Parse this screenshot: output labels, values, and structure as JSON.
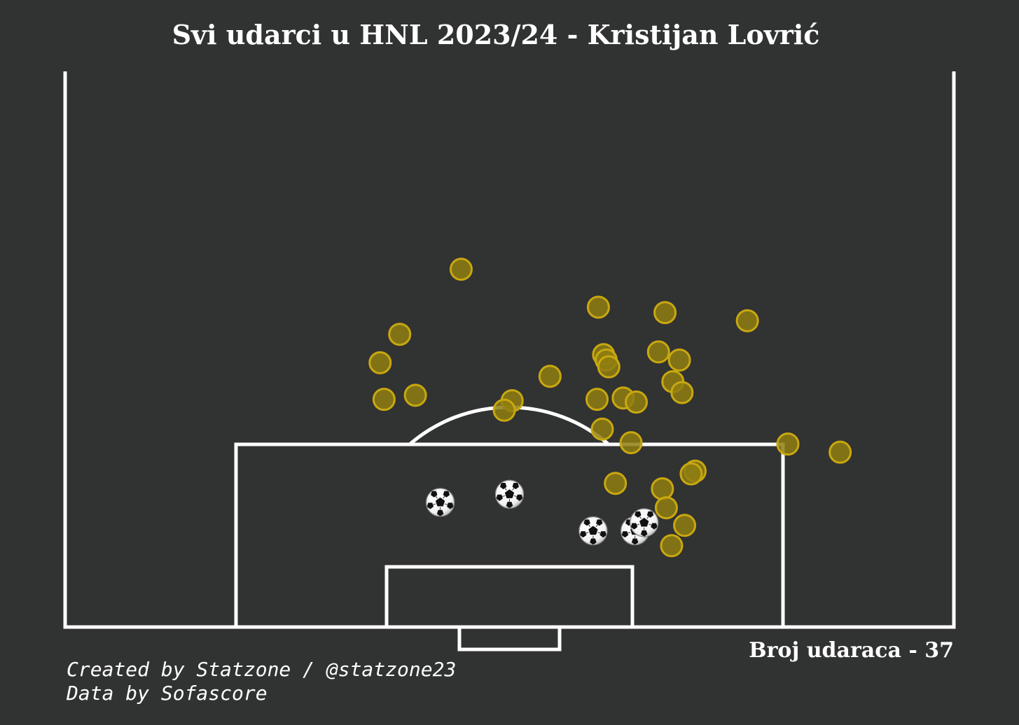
{
  "title": "Svi udarci u HNL 2023/24 - Kristijan Lovrić",
  "shot_count_label": "Broj udaraca - 37",
  "credits": {
    "line1": "Created by Statzone / @statzone23",
    "line2": "Data by Sofascore"
  },
  "colors": {
    "background": "#313232",
    "lines": "#ffffff",
    "shot_fill": "#8f7e10",
    "shot_stroke": "#c9a80f"
  },
  "chart_data": {
    "type": "scatter",
    "title": "Svi udarci u HNL 2023/24 - Kristijan Lovrić",
    "xlabel": "",
    "ylabel": "",
    "xlim": [
      0,
      68
    ],
    "ylim": [
      0,
      41
    ],
    "grid": false,
    "legend": "none",
    "series": [
      {
        "marker": "yellow-circle",
        "points": [
          {
            "x": 30.3,
            "y": 26.4
          },
          {
            "x": 25.6,
            "y": 21.6
          },
          {
            "x": 24.1,
            "y": 19.5
          },
          {
            "x": 24.4,
            "y": 16.8
          },
          {
            "x": 26.8,
            "y": 17.1
          },
          {
            "x": 34.2,
            "y": 16.7
          },
          {
            "x": 33.6,
            "y": 16.0
          },
          {
            "x": 37.1,
            "y": 18.5
          },
          {
            "x": 40.8,
            "y": 23.6
          },
          {
            "x": 41.2,
            "y": 20.1
          },
          {
            "x": 41.4,
            "y": 19.7
          },
          {
            "x": 41.6,
            "y": 19.2
          },
          {
            "x": 40.7,
            "y": 16.8
          },
          {
            "x": 42.7,
            "y": 16.9
          },
          {
            "x": 43.7,
            "y": 16.6
          },
          {
            "x": 45.9,
            "y": 23.2
          },
          {
            "x": 45.4,
            "y": 20.3
          },
          {
            "x": 47.0,
            "y": 19.7
          },
          {
            "x": 46.5,
            "y": 18.1
          },
          {
            "x": 47.2,
            "y": 17.3
          },
          {
            "x": 52.2,
            "y": 22.6
          },
          {
            "x": 41.1,
            "y": 14.6
          },
          {
            "x": 43.3,
            "y": 13.6
          },
          {
            "x": 55.3,
            "y": 13.5
          },
          {
            "x": 59.3,
            "y": 12.9
          },
          {
            "x": 48.2,
            "y": 11.5
          },
          {
            "x": 47.9,
            "y": 11.3
          },
          {
            "x": 42.1,
            "y": 10.6
          },
          {
            "x": 45.7,
            "y": 10.2
          },
          {
            "x": 46.0,
            "y": 8.8
          },
          {
            "x": 47.4,
            "y": 7.5
          },
          {
            "x": 46.4,
            "y": 6.0
          }
        ]
      },
      {
        "marker": "football",
        "points": [
          {
            "x": 28.7,
            "y": 9.2
          },
          {
            "x": 34.0,
            "y": 9.8
          },
          {
            "x": 40.4,
            "y": 7.1
          },
          {
            "x": 43.6,
            "y": 7.1
          },
          {
            "x": 44.3,
            "y": 7.7
          }
        ]
      }
    ]
  }
}
